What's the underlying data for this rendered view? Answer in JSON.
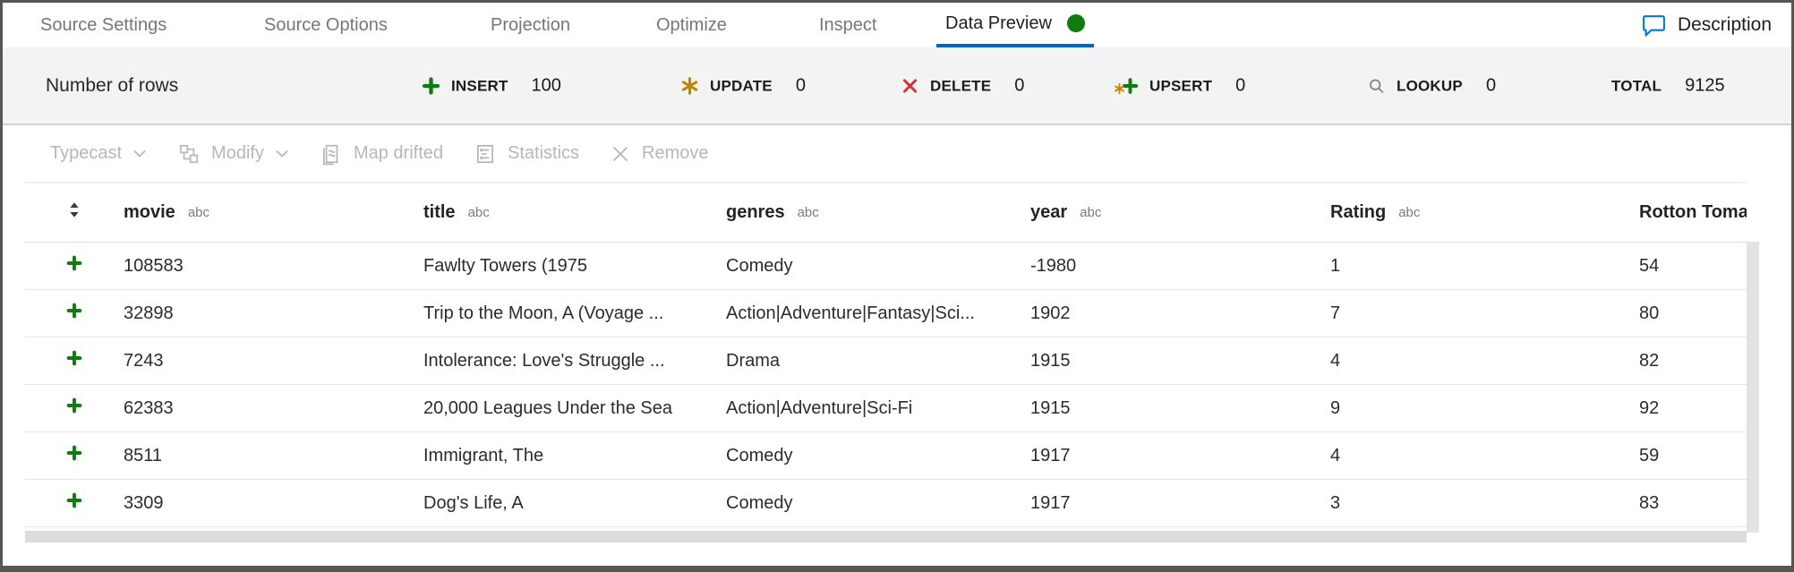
{
  "tabs": [
    {
      "label": "Source Settings",
      "active": false
    },
    {
      "label": "Source Options",
      "active": false
    },
    {
      "label": "Projection",
      "active": false
    },
    {
      "label": "Optimize",
      "active": false
    },
    {
      "label": "Inspect",
      "active": false
    },
    {
      "label": "Data Preview",
      "active": true,
      "status_dot": true
    }
  ],
  "header_right": {
    "description_label": "Description"
  },
  "stats": {
    "rows_label": "Number of rows",
    "items": [
      {
        "label": "INSERT",
        "value": "100",
        "icon": "insert-plus-icon"
      },
      {
        "label": "UPDATE",
        "value": "0",
        "icon": "update-asterisk-icon"
      },
      {
        "label": "DELETE",
        "value": "0",
        "icon": "delete-x-icon"
      },
      {
        "label": "UPSERT",
        "value": "0",
        "icon": "upsert-plus-asterisk-icon"
      },
      {
        "label": "LOOKUP",
        "value": "0",
        "icon": "lookup-magnifier-icon"
      },
      {
        "label": "TOTAL",
        "value": "9125",
        "icon": null
      }
    ]
  },
  "toolbar": [
    {
      "label": "Typecast",
      "icon": null,
      "dropdown": true
    },
    {
      "label": "Modify",
      "icon": "modify-branch-icon",
      "dropdown": true
    },
    {
      "label": "Map drifted",
      "icon": "map-drifted-icon",
      "dropdown": false
    },
    {
      "label": "Statistics",
      "icon": "statistics-icon",
      "dropdown": false
    },
    {
      "label": "Remove",
      "icon": "remove-x-icon",
      "dropdown": false
    }
  ],
  "table": {
    "columns": [
      {
        "name": "movie",
        "type": "abc"
      },
      {
        "name": "title",
        "type": "abc"
      },
      {
        "name": "genres",
        "type": "abc"
      },
      {
        "name": "year",
        "type": "abc"
      },
      {
        "name": "Rating",
        "type": "abc"
      },
      {
        "name": "Rotton Tomato",
        "type": ""
      }
    ],
    "rows": [
      {
        "movie": "108583",
        "title": "Fawlty Towers (1975",
        "genres": "Comedy",
        "year": "-1980",
        "rating": "1",
        "rotten": "54"
      },
      {
        "movie": "32898",
        "title": "Trip to the Moon, A (Voyage ...",
        "genres": "Action|Adventure|Fantasy|Sci...",
        "year": "1902",
        "rating": "7",
        "rotten": "80"
      },
      {
        "movie": "7243",
        "title": "Intolerance: Love's Struggle ...",
        "genres": "Drama",
        "year": "1915",
        "rating": "4",
        "rotten": "82"
      },
      {
        "movie": "62383",
        "title": "20,000 Leagues Under the Sea",
        "genres": "Action|Adventure|Sci-Fi",
        "year": "1915",
        "rating": "9",
        "rotten": "92"
      },
      {
        "movie": "8511",
        "title": "Immigrant, The",
        "genres": "Comedy",
        "year": "1917",
        "rating": "4",
        "rotten": "59"
      },
      {
        "movie": "3309",
        "title": "Dog's Life, A",
        "genres": "Comedy",
        "year": "1917",
        "rating": "3",
        "rotten": "83"
      }
    ]
  },
  "colors": {
    "accent_blue": "#0065cb",
    "description_blue": "#0078d4",
    "insert_green": "#107c10",
    "update_orange": "#c18401",
    "delete_red": "#d13438",
    "lookup_gray": "#8a8886"
  }
}
